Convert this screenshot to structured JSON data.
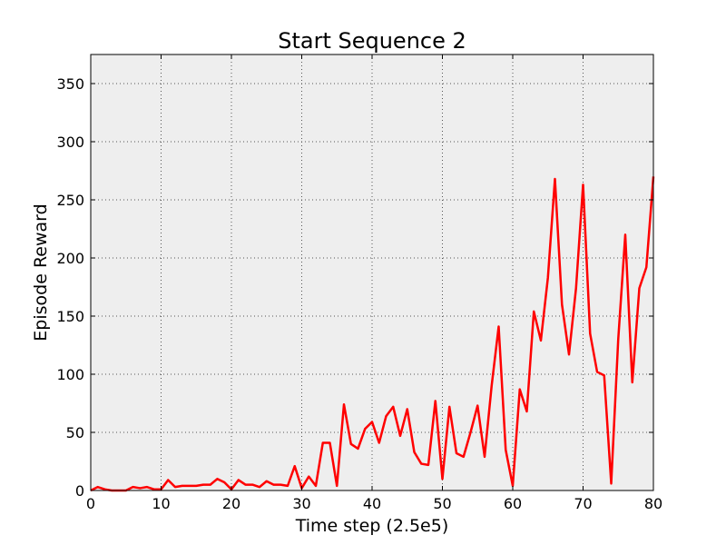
{
  "chart_data": {
    "type": "line",
    "title": "Start Sequence 2",
    "xlabel": "Time step (2.5e5)",
    "ylabel": "Episode Reward",
    "xlim": [
      0,
      80
    ],
    "ylim": [
      0,
      375
    ],
    "xticks": [
      0,
      10,
      20,
      30,
      40,
      50,
      60,
      70,
      80
    ],
    "yticks": [
      0,
      50,
      100,
      150,
      200,
      250,
      300,
      350
    ],
    "grid": true,
    "background": "#eeeeee",
    "series": [
      {
        "color": "#ff0000",
        "x": [
          0,
          1,
          2,
          3,
          4,
          5,
          6,
          7,
          8,
          9,
          10,
          11,
          12,
          13,
          14,
          15,
          16,
          17,
          18,
          19,
          20,
          21,
          22,
          23,
          24,
          25,
          26,
          27,
          28,
          29,
          30,
          31,
          32,
          33,
          34,
          35,
          36,
          37,
          38,
          39,
          40,
          41,
          42,
          43,
          44,
          45,
          46,
          47,
          48,
          49,
          50,
          51,
          52,
          53,
          54,
          55,
          56,
          57,
          58,
          59,
          60,
          61,
          62,
          63,
          64,
          65,
          66,
          67,
          68,
          69,
          70,
          71,
          72,
          73,
          74,
          75,
          76,
          77,
          78,
          79,
          80
        ],
        "y": [
          0,
          3,
          1,
          0,
          0,
          0,
          3,
          2,
          3,
          1,
          1,
          9,
          3,
          4,
          4,
          4,
          5,
          5,
          10,
          7,
          1,
          9,
          5,
          5,
          3,
          8,
          5,
          5,
          4,
          21,
          2,
          12,
          4,
          41,
          41,
          4,
          74,
          40,
          36,
          53,
          59,
          41,
          64,
          72,
          47,
          70,
          33,
          23,
          22,
          77,
          10,
          72,
          32,
          29,
          50,
          73,
          29,
          90,
          141,
          35,
          4,
          87,
          68,
          154,
          129,
          183,
          268,
          160,
          117,
          174,
          263,
          135,
          102,
          99,
          6,
          130,
          220,
          93,
          174,
          192,
          270
        ]
      }
    ]
  }
}
